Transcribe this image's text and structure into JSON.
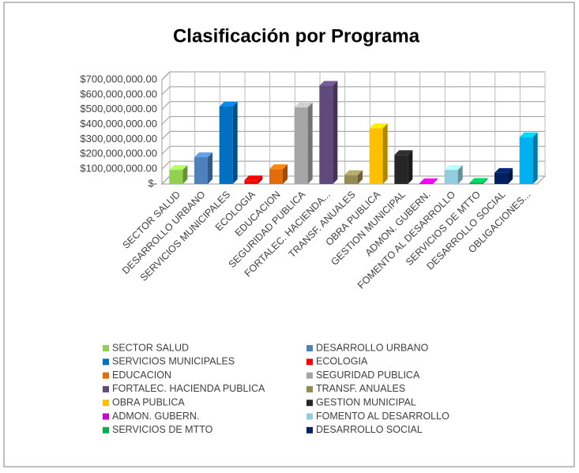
{
  "chart_data": {
    "type": "bar3d",
    "title": "Clasificación por Programa",
    "categories": [
      "SECTOR SALUD",
      "DESARROLLO URBANO",
      "SERVICIOS MUNICIPALES",
      "ECOLOGIA",
      "EDUCACION",
      "SEGURIDAD PUBLICA",
      "FORTALEC. HACIENDA...",
      "TRANSF. ANUALES",
      "OBRA PUBLICA",
      "GESTION MUNICIPAL",
      "ADMON. GUBERN.",
      "FOMENTO AL DESARROLLO",
      "SERVICIOS DE MTTO",
      "DESARROLLO SOCIAL",
      "OBLIGACIONES..."
    ],
    "values": [
      95000000,
      180000000,
      520000000,
      25000000,
      100000000,
      515000000,
      660000000,
      60000000,
      375000000,
      195000000,
      5000000,
      95000000,
      8000000,
      75000000,
      315000000
    ],
    "colors": [
      "#92d050",
      "#4f81bd",
      "#0070c0",
      "#ff0000",
      "#e36c09",
      "#a6a6a6",
      "#604a7b",
      "#948a54",
      "#ffc000",
      "#262626",
      "#cc00cc",
      "#93cddd",
      "#00b050",
      "#002060",
      "#00b0f0"
    ],
    "legend": [
      "SECTOR SALUD",
      "DESARROLLO URBANO",
      "SERVICIOS MUNICIPALES",
      "ECOLOGIA",
      "EDUCACION",
      "SEGURIDAD PUBLICA",
      "FORTALEC. HACIENDA PUBLICA",
      "TRANSF. ANUALES",
      "OBRA PUBLICA",
      "GESTION MUNICIPAL",
      "ADMON. GUBERN.",
      "FOMENTO AL DESARROLLO",
      "SERVICIOS DE MTTO",
      "DESARROLLO SOCIAL"
    ],
    "ylim": [
      0,
      700000000
    ],
    "yticks": [
      {
        "value": 0,
        "label": "$-"
      },
      {
        "value": 100000000,
        "label": "$100,000,000.00"
      },
      {
        "value": 200000000,
        "label": "$200,000,000.00"
      },
      {
        "value": 300000000,
        "label": "$300,000,000.00"
      },
      {
        "value": 400000000,
        "label": "$400,000,000.00"
      },
      {
        "value": 500000000,
        "label": "$500,000,000.00"
      },
      {
        "value": 600000000,
        "label": "$600,000,000.00"
      },
      {
        "value": 700000000,
        "label": "$700,000,000.00"
      }
    ],
    "grid": true
  }
}
